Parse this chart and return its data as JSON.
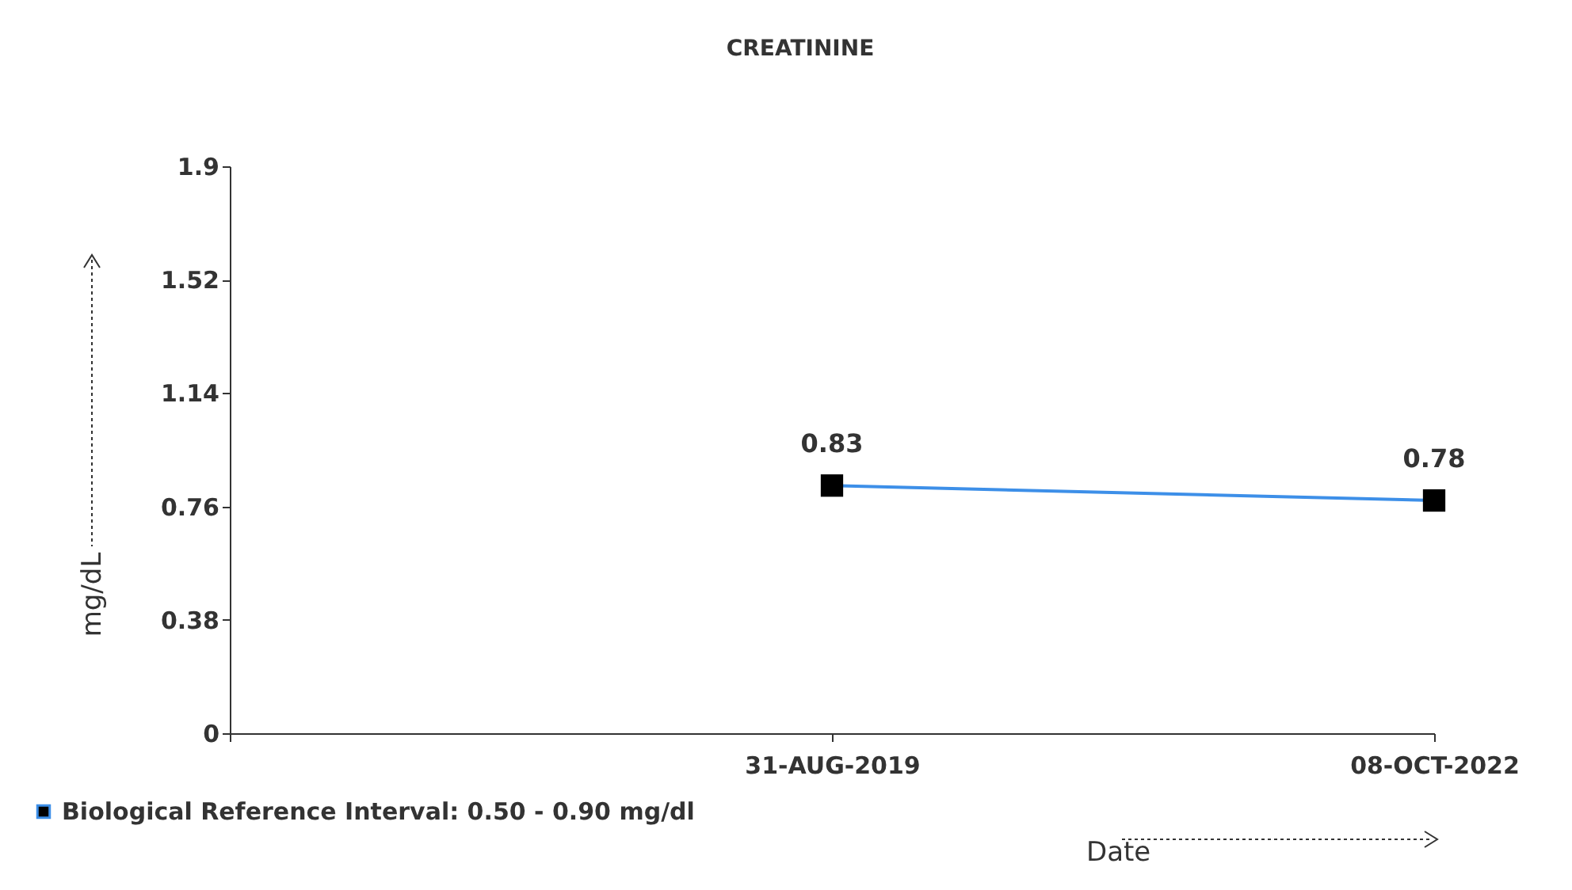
{
  "chart_data": {
    "type": "line",
    "title": "CREATININE",
    "xlabel": "Date",
    "ylabel": "mg/dL",
    "categories": [
      null,
      "31-AUG-2019",
      "08-OCT-2022"
    ],
    "series": [
      {
        "name": "Biological Reference Interval: 0.50 - 0.90 mg/dl",
        "color": "#3d8fe8",
        "values": [
          null,
          0.83,
          0.78
        ]
      }
    ],
    "ylim": [
      0,
      1.9
    ],
    "yticks": [
      0,
      0.38,
      0.76,
      1.14,
      1.52,
      1.9
    ],
    "marker": "square",
    "data_labels": true,
    "legend": "bottom left",
    "grid": false
  }
}
